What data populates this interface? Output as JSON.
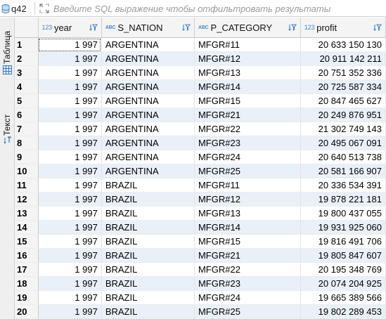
{
  "filter": {
    "query_name": "q42",
    "placeholder": "Введите SQL выражение чтобы отфильтровать результаты"
  },
  "side_tabs": {
    "table_label": "Таблица",
    "text_label": "Текст"
  },
  "columns": [
    {
      "name": "year",
      "type_badge": "123",
      "type": "number"
    },
    {
      "name": "S_NATION",
      "type_badge": "ABC",
      "type": "string"
    },
    {
      "name": "P_CATEGORY",
      "type_badge": "ABC",
      "type": "string"
    },
    {
      "name": "profit",
      "type_badge": "123",
      "type": "number"
    }
  ],
  "rows": [
    {
      "n": "1",
      "year": "1 997",
      "nation": "ARGENTINA",
      "category": "MFGR#11",
      "profit": "20 633 150 130"
    },
    {
      "n": "2",
      "year": "1 997",
      "nation": "ARGENTINA",
      "category": "MFGR#12",
      "profit": "20 911 142 211"
    },
    {
      "n": "3",
      "year": "1 997",
      "nation": "ARGENTINA",
      "category": "MFGR#13",
      "profit": "20 751 352 336"
    },
    {
      "n": "4",
      "year": "1 997",
      "nation": "ARGENTINA",
      "category": "MFGR#14",
      "profit": "20 725 587 334"
    },
    {
      "n": "5",
      "year": "1 997",
      "nation": "ARGENTINA",
      "category": "MFGR#15",
      "profit": "20 847 465 627"
    },
    {
      "n": "6",
      "year": "1 997",
      "nation": "ARGENTINA",
      "category": "MFGR#21",
      "profit": "20 249 876 951"
    },
    {
      "n": "7",
      "year": "1 997",
      "nation": "ARGENTINA",
      "category": "MFGR#22",
      "profit": "21 302 749 143"
    },
    {
      "n": "8",
      "year": "1 997",
      "nation": "ARGENTINA",
      "category": "MFGR#23",
      "profit": "20 495 067 091"
    },
    {
      "n": "9",
      "year": "1 997",
      "nation": "ARGENTINA",
      "category": "MFGR#24",
      "profit": "20 640 513 738"
    },
    {
      "n": "10",
      "year": "1 997",
      "nation": "ARGENTINA",
      "category": "MFGR#25",
      "profit": "20 581 166 907"
    },
    {
      "n": "11",
      "year": "1 997",
      "nation": "BRAZIL",
      "category": "MFGR#11",
      "profit": "20 336 534 391"
    },
    {
      "n": "12",
      "year": "1 997",
      "nation": "BRAZIL",
      "category": "MFGR#12",
      "profit": "19 878 221 181"
    },
    {
      "n": "13",
      "year": "1 997",
      "nation": "BRAZIL",
      "category": "MFGR#13",
      "profit": "19 800 437 055"
    },
    {
      "n": "14",
      "year": "1 997",
      "nation": "BRAZIL",
      "category": "MFGR#14",
      "profit": "19 931 925 060"
    },
    {
      "n": "15",
      "year": "1 997",
      "nation": "BRAZIL",
      "category": "MFGR#15",
      "profit": "19 816 491 706"
    },
    {
      "n": "16",
      "year": "1 997",
      "nation": "BRAZIL",
      "category": "MFGR#21",
      "profit": "19 805 847 607"
    },
    {
      "n": "17",
      "year": "1 997",
      "nation": "BRAZIL",
      "category": "MFGR#22",
      "profit": "20 195 348 769"
    },
    {
      "n": "18",
      "year": "1 997",
      "nation": "BRAZIL",
      "category": "MFGR#23",
      "profit": "20 074 204 925"
    },
    {
      "n": "19",
      "year": "1 997",
      "nation": "BRAZIL",
      "category": "MFGR#24",
      "profit": "19 665 389 566"
    },
    {
      "n": "20",
      "year": "1 997",
      "nation": "BRAZIL",
      "category": "MFGR#25",
      "profit": "19 802 289 453"
    }
  ],
  "icons": {
    "query": "database-icon",
    "expand": "expand-icon",
    "table_view": "grid-icon",
    "text_view": "text-mode-icon",
    "sort": "sort-icon",
    "filter": "filter-icon"
  },
  "colors": {
    "accent": "#4a86c5",
    "alt_row": "#eaf0f8",
    "header_bg": "#f4f4f4"
  }
}
